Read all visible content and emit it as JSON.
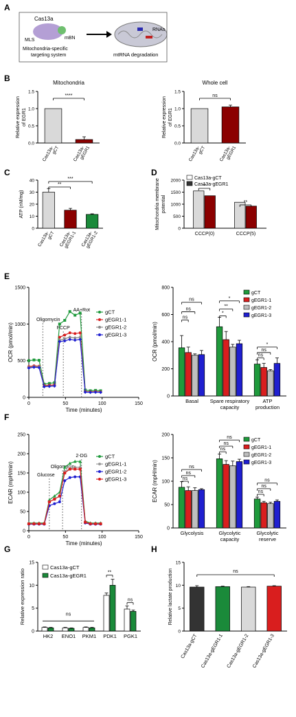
{
  "panels": {
    "A": "A",
    "B": "B",
    "C": "C",
    "D": "D",
    "E": "E",
    "F": "F",
    "G": "G",
    "H": "H"
  },
  "schematic": {
    "cas13a": "Cas13a",
    "mls": "MLS",
    "mbn": "mBN",
    "rnas": "RNAs",
    "system_line1": "Mitochondria-specific",
    "system_line2": "targeting system",
    "result": "mtRNA degradation"
  },
  "colors": {
    "gray": "#d9d9d9",
    "darkred": "#8b0000",
    "green": "#1a8a3a",
    "gct": "#1f9a3c",
    "g1": "#d91e1e",
    "g2": "#bfbfbf",
    "g3": "#1f1fd0",
    "black": "#333333",
    "white": "#ffffff"
  },
  "chart_data": [
    {
      "id": "B1",
      "type": "bar",
      "title": "Mitochondria",
      "ylabel": "Relative expression of EGR1",
      "categories": [
        "Cas13a-gCT",
        "Cas13a-gEGR1"
      ],
      "values": [
        1.0,
        0.1
      ],
      "errors": [
        0,
        0.08
      ],
      "ylim": [
        0,
        1.5
      ],
      "yticks": [
        "0.0",
        "0.5",
        "1.0",
        "1.5"
      ],
      "sig": "****"
    },
    {
      "id": "B2",
      "type": "bar",
      "title": "Whole cell",
      "ylabel": "Relative expression of EGR1",
      "categories": [
        "Cas13a-gCT",
        "Cas13a-gEGR1"
      ],
      "values": [
        1.0,
        1.05
      ],
      "errors": [
        0,
        0.05
      ],
      "ylim": [
        0,
        1.5
      ],
      "yticks": [
        "0.0",
        "0.5",
        "1.0",
        "1.5"
      ],
      "sig": "ns"
    },
    {
      "id": "C",
      "type": "bar",
      "ylabel": "ATP (nM/mg)",
      "categories": [
        "Cas13a-gCT",
        "Cas13a-gEGR1-1",
        "Cas13a-gEGR1-2"
      ],
      "values": [
        30,
        15,
        11.5
      ],
      "errors": [
        3,
        1.5,
        0.5
      ],
      "ylim": [
        0,
        40
      ],
      "yticks": [
        "0",
        "10",
        "20",
        "30",
        "40"
      ],
      "sig": [
        "**",
        "***"
      ]
    },
    {
      "id": "D",
      "type": "bar",
      "ylabel": "Mitochondria membrane potential",
      "categories": [
        "CCCP(0)",
        "CCCP(5)"
      ],
      "series": [
        {
          "name": "Cas13a-gCT",
          "values": [
            1550,
            1080
          ]
        },
        {
          "name": "Cas13a-gEGR1",
          "values": [
            1350,
            920
          ]
        }
      ],
      "ylim": [
        0,
        2000
      ],
      "yticks": [
        "0",
        "500",
        "1000",
        "1500",
        "2000"
      ],
      "sig": [
        "**",
        "**"
      ]
    },
    {
      "id": "E1",
      "type": "line",
      "xlabel": "Time (minutes)",
      "ylabel": "OCR (pmol/min)",
      "xlim": [
        0,
        150
      ],
      "ylim": [
        0,
        1500
      ],
      "xticks": [
        "0",
        "50",
        "100",
        "150"
      ],
      "yticks": [
        "0",
        "500",
        "1000",
        "1500"
      ],
      "annotations": [
        "Oligomycin",
        "FCCP",
        "AA+Rot"
      ],
      "x": [
        0,
        7,
        14,
        21,
        28,
        35,
        42,
        49,
        56,
        63,
        70,
        77,
        84,
        91,
        98
      ],
      "series": [
        {
          "name": "gCT",
          "values": [
            500,
            510,
            505,
            180,
            190,
            200,
            1000,
            1050,
            1170,
            1120,
            1150,
            100,
            90,
            95,
            90
          ]
        },
        {
          "name": "gEGR1-1",
          "values": [
            420,
            430,
            425,
            160,
            165,
            170,
            820,
            850,
            880,
            870,
            880,
            80,
            75,
            78,
            75
          ]
        },
        {
          "name": "gEGR1-2",
          "values": [
            410,
            420,
            418,
            150,
            155,
            160,
            780,
            800,
            820,
            810,
            820,
            75,
            70,
            72,
            70
          ]
        },
        {
          "name": "gEGR1-3",
          "values": [
            400,
            410,
            405,
            145,
            150,
            155,
            760,
            770,
            790,
            780,
            790,
            70,
            68,
            70,
            68
          ]
        }
      ]
    },
    {
      "id": "E2",
      "type": "bar",
      "ylabel": "OCR (pmol/min)",
      "ylim": [
        0,
        800
      ],
      "yticks": [
        "0",
        "200",
        "400",
        "600",
        "800"
      ],
      "categories": [
        "Basal",
        "Spare respiratory capacity",
        "ATP production"
      ],
      "cat_lines": [
        [
          "Basal"
        ],
        [
          "Spare respiratory",
          "capacity"
        ],
        [
          "ATP",
          "production"
        ]
      ],
      "series": [
        {
          "name": "gCT",
          "values": [
            355,
            510,
            235
          ],
          "errors": [
            90,
            70,
            30
          ]
        },
        {
          "name": "gEGR1-1",
          "values": [
            320,
            415,
            210
          ],
          "errors": [
            40,
            60,
            30
          ]
        },
        {
          "name": "gEGR1-2",
          "values": [
            300,
            360,
            185
          ],
          "errors": [
            10,
            20,
            10
          ]
        },
        {
          "name": "gEGR1-3",
          "values": [
            305,
            385,
            240
          ],
          "errors": [
            30,
            25,
            40
          ]
        }
      ],
      "sig": [
        "ns",
        "ns",
        "ns",
        "*",
        "**",
        "*",
        "ns",
        "ns",
        "*"
      ]
    },
    {
      "id": "F1",
      "type": "line",
      "xlabel": "Time (minutes)",
      "ylabel": "ECAR (mpH/min)",
      "xlim": [
        0,
        150
      ],
      "ylim": [
        0,
        250
      ],
      "xticks": [
        "0",
        "50",
        "100",
        "150"
      ],
      "yticks": [
        "0",
        "50",
        "100",
        "150",
        "200",
        "250"
      ],
      "annotations": [
        "Glucose",
        "Oligomycin",
        "2-DG"
      ],
      "x": [
        0,
        7,
        14,
        21,
        28,
        35,
        42,
        49,
        56,
        63,
        70,
        77,
        84,
        91,
        98
      ],
      "series": [
        {
          "name": "gCT",
          "values": [
            20,
            20,
            20,
            20,
            80,
            90,
            100,
            165,
            175,
            180,
            180,
            25,
            20,
            20,
            20
          ]
        },
        {
          "name": "gEGR1-1",
          "values": [
            18,
            18,
            18,
            18,
            75,
            82,
            90,
            155,
            160,
            165,
            165,
            22,
            18,
            18,
            18
          ]
        },
        {
          "name": "gEGR1-2",
          "values": [
            17,
            17,
            17,
            17,
            65,
            70,
            75,
            130,
            138,
            140,
            140,
            20,
            17,
            17,
            17
          ]
        },
        {
          "name": "gEGR1-3",
          "values": [
            18,
            18,
            18,
            18,
            75,
            82,
            90,
            150,
            160,
            160,
            160,
            22,
            18,
            18,
            18
          ]
        }
      ]
    },
    {
      "id": "F2",
      "type": "bar",
      "ylabel": "ECAR (mpH/min)",
      "ylim": [
        0,
        200
      ],
      "yticks": [
        "0",
        "50",
        "100",
        "150",
        "200"
      ],
      "categories": [
        "Glycolysis",
        "Glycolytic capacity",
        "Glycolytic reserve"
      ],
      "cat_lines": [
        [
          "Glycolysis"
        ],
        [
          "Glycolytic",
          "capacity"
        ],
        [
          "Glycolytic",
          "reserve"
        ]
      ],
      "series": [
        {
          "name": "gCT",
          "values": [
            87,
            148,
            62
          ],
          "errors": [
            12,
            10,
            4
          ]
        },
        {
          "name": "gEGR1-1",
          "values": [
            80,
            136,
            54
          ],
          "errors": [
            8,
            8,
            3
          ]
        },
        {
          "name": "gEGR1-2",
          "values": [
            80,
            133,
            52
          ],
          "errors": [
            6,
            10,
            3
          ]
        },
        {
          "name": "gEGR1-3",
          "values": [
            82,
            142,
            57
          ],
          "errors": [
            2,
            5,
            3
          ]
        }
      ],
      "sig": [
        "ns",
        "ns",
        "ns",
        "ns",
        "ns",
        "ns",
        "ns",
        "ns",
        "ns"
      ]
    },
    {
      "id": "G",
      "type": "bar",
      "ylabel": "Relative expression ratio",
      "ylim": [
        0,
        15
      ],
      "yticks": [
        "0",
        "5",
        "10",
        "15"
      ],
      "categories": [
        "HK2",
        "ENO1",
        "PKM1",
        "PDK1",
        "PGK1"
      ],
      "series": [
        {
          "name": "Cas13a-gCT",
          "values": [
            0.8,
            0.7,
            0.8,
            7.8,
            4.8
          ],
          "errors": [
            0.1,
            0.1,
            0.1,
            0.5,
            0.7
          ]
        },
        {
          "name": "Cas13a-gEGR1",
          "values": [
            0.7,
            0.6,
            0.7,
            10.0,
            4.3
          ],
          "errors": [
            0.1,
            0.1,
            0.1,
            1.3,
            0.3
          ]
        }
      ],
      "sig": [
        "ns",
        "**",
        "ns"
      ]
    },
    {
      "id": "H",
      "type": "bar",
      "ylabel": "Relative lactate production",
      "ylim": [
        0,
        15
      ],
      "yticks": [
        "0",
        "5",
        "10",
        "15"
      ],
      "categories": [
        "Cas13a-gCT",
        "Cas13a-gEGR1-1",
        "Cas13a-gEGR1-2",
        "Cas13a-gEGR1-3"
      ],
      "values": [
        9.6,
        9.7,
        9.6,
        9.8
      ],
      "errors": [
        0.3,
        0.1,
        0.1,
        0.1
      ],
      "sig": "ns"
    }
  ]
}
